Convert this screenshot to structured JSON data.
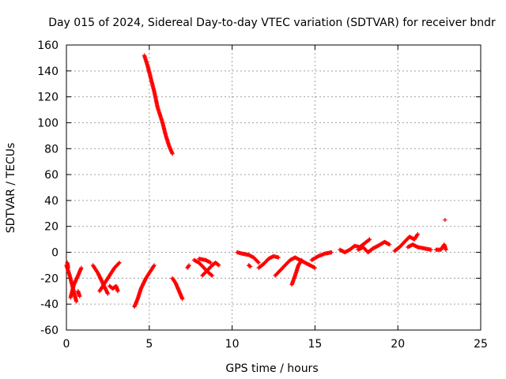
{
  "chart_data": {
    "type": "scatter",
    "title": "Day 015 of 2024, Sidereal Day-to-day VTEC variation (SDTVAR) for receiver bndr",
    "xlabel": "GPS time / hours",
    "ylabel": "SDTVAR / TECUs",
    "xlim": [
      0,
      25
    ],
    "ylim": [
      -60,
      160
    ],
    "xticks": [
      0,
      5,
      10,
      15,
      20,
      25
    ],
    "yticks": [
      -60,
      -40,
      -20,
      0,
      20,
      40,
      60,
      80,
      100,
      120,
      140,
      160
    ],
    "xtick_labels": [
      "0",
      "5",
      "10",
      "15",
      "20",
      "25"
    ],
    "ytick_labels": [
      "-60",
      "-40",
      "-20",
      "0",
      "20",
      "40",
      "60",
      "80",
      "100",
      "120",
      "140",
      "160"
    ],
    "grid": true,
    "marker": "+",
    "color": "#ff0000",
    "segments": [
      [
        [
          0.0,
          -10
        ],
        [
          0.2,
          -18
        ],
        [
          0.4,
          -28
        ],
        [
          0.6,
          -38
        ]
      ],
      [
        [
          0.05,
          -8
        ],
        [
          0.1,
          -12
        ]
      ],
      [
        [
          0.25,
          -35
        ],
        [
          0.45,
          -25
        ],
        [
          0.7,
          -18
        ],
        [
          0.9,
          -12
        ]
      ],
      [
        [
          0.7,
          -30
        ],
        [
          0.8,
          -34
        ]
      ],
      [
        [
          1.6,
          -10
        ],
        [
          1.9,
          -16
        ],
        [
          2.2,
          -24
        ],
        [
          2.5,
          -32
        ]
      ],
      [
        [
          2.0,
          -30
        ],
        [
          2.3,
          -24
        ],
        [
          2.6,
          -18
        ],
        [
          2.9,
          -12
        ],
        [
          3.2,
          -8
        ]
      ],
      [
        [
          2.6,
          -26
        ],
        [
          2.8,
          -28
        ],
        [
          3.0,
          -26
        ],
        [
          3.1,
          -30
        ]
      ],
      [
        [
          4.1,
          -42
        ],
        [
          4.3,
          -36
        ],
        [
          4.5,
          -28
        ],
        [
          4.8,
          -20
        ],
        [
          5.1,
          -14
        ],
        [
          5.3,
          -10
        ]
      ],
      [
        [
          4.7,
          152
        ],
        [
          4.9,
          144
        ],
        [
          5.1,
          134
        ],
        [
          5.3,
          124
        ],
        [
          5.5,
          112
        ],
        [
          5.8,
          100
        ],
        [
          6.0,
          90
        ],
        [
          6.2,
          82
        ],
        [
          6.4,
          76
        ]
      ],
      [
        [
          6.4,
          -20
        ],
        [
          6.6,
          -24
        ],
        [
          6.8,
          -30
        ],
        [
          7.0,
          -36
        ]
      ],
      [
        [
          7.3,
          -12
        ],
        [
          7.4,
          -10
        ]
      ],
      [
        [
          7.7,
          -6
        ],
        [
          8.0,
          -8
        ],
        [
          8.3,
          -12
        ],
        [
          8.6,
          -16
        ],
        [
          8.8,
          -18
        ]
      ],
      [
        [
          8.2,
          -18
        ],
        [
          8.5,
          -14
        ],
        [
          8.8,
          -10
        ],
        [
          9.0,
          -8
        ],
        [
          9.2,
          -10
        ]
      ],
      [
        [
          8.0,
          -5
        ],
        [
          8.4,
          -6
        ],
        [
          8.7,
          -8
        ]
      ],
      [
        [
          10.3,
          0
        ],
        [
          10.6,
          -1
        ],
        [
          11.0,
          -2
        ],
        [
          11.3,
          -4
        ],
        [
          11.6,
          -8
        ]
      ],
      [
        [
          11.0,
          -10
        ],
        [
          11.1,
          -11
        ]
      ],
      [
        [
          11.6,
          -12
        ],
        [
          11.9,
          -9
        ],
        [
          12.2,
          -5
        ],
        [
          12.5,
          -3
        ],
        [
          12.8,
          -4
        ]
      ],
      [
        [
          12.6,
          -18
        ],
        [
          12.9,
          -14
        ],
        [
          13.2,
          -10
        ],
        [
          13.5,
          -6
        ],
        [
          13.8,
          -4
        ]
      ],
      [
        [
          13.6,
          -25
        ],
        [
          13.8,
          -18
        ],
        [
          14.0,
          -10
        ],
        [
          14.2,
          -6
        ]
      ],
      [
        [
          13.8,
          -4
        ],
        [
          14.1,
          -6
        ],
        [
          14.4,
          -8
        ],
        [
          14.7,
          -10
        ],
        [
          15.0,
          -12
        ]
      ],
      [
        [
          14.8,
          -6
        ],
        [
          15.2,
          -3
        ],
        [
          15.6,
          -1
        ],
        [
          16.0,
          0
        ]
      ],
      [
        [
          16.5,
          2
        ],
        [
          16.8,
          0
        ],
        [
          17.1,
          2
        ],
        [
          17.4,
          5
        ],
        [
          17.7,
          4
        ],
        [
          18.0,
          7
        ],
        [
          18.3,
          10
        ]
      ],
      [
        [
          17.6,
          2
        ],
        [
          17.9,
          4
        ],
        [
          18.2,
          0
        ],
        [
          18.5,
          3
        ],
        [
          18.8,
          5
        ],
        [
          19.2,
          8
        ],
        [
          19.5,
          6
        ]
      ],
      [
        [
          19.8,
          1
        ],
        [
          20.1,
          4
        ],
        [
          20.4,
          8
        ],
        [
          20.7,
          12
        ],
        [
          21.0,
          10
        ],
        [
          21.2,
          14
        ]
      ],
      [
        [
          20.6,
          4
        ],
        [
          20.9,
          6
        ],
        [
          21.2,
          4
        ],
        [
          21.6,
          3
        ],
        [
          22.0,
          2
        ]
      ],
      [
        [
          22.3,
          2
        ],
        [
          22.6,
          2
        ],
        [
          22.8,
          6
        ],
        [
          22.9,
          2
        ]
      ],
      [
        [
          22.85,
          25
        ]
      ]
    ]
  }
}
